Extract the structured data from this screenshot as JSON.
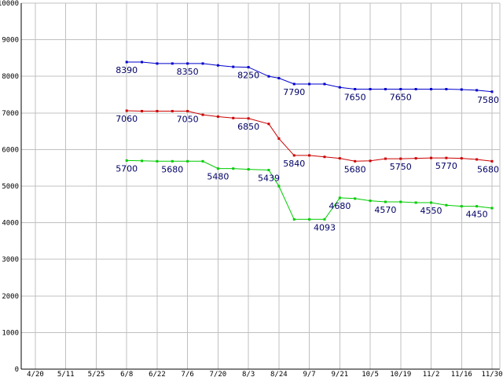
{
  "chart_data": {
    "type": "line",
    "title": "",
    "xlabel": "",
    "ylabel": "",
    "ylim": [
      0,
      10000
    ],
    "y_ticks": [
      0,
      1000,
      2000,
      3000,
      4000,
      5000,
      6000,
      7000,
      8000,
      9000,
      10000
    ],
    "x_ticks": [
      "4/20",
      "5/11",
      "5/25",
      "6/8",
      "6/22",
      "7/6",
      "7/20",
      "8/3",
      "8/24",
      "9/7",
      "9/21",
      "10/5",
      "10/19",
      "11/2",
      "11/16",
      "11/30"
    ],
    "grid": true,
    "legend": "none",
    "colors": {
      "axis": "#000000",
      "grid": "#c0c0c0",
      "labels": "#000066"
    },
    "series": [
      {
        "color": "#0000cc",
        "values": [
          {
            "x": "6/8",
            "y": 8390
          },
          {
            "x": "6/15",
            "y": 8390
          },
          {
            "x": "6/22",
            "y": 8350
          },
          {
            "x": "6/29",
            "y": 8350
          },
          {
            "x": "7/6",
            "y": 8350
          },
          {
            "x": "7/13",
            "y": 8350
          },
          {
            "x": "7/20",
            "y": 8300
          },
          {
            "x": "7/27",
            "y": 8260
          },
          {
            "x": "8/3",
            "y": 8250
          },
          {
            "x": "8/17",
            "y": 8000
          },
          {
            "x": "8/24",
            "y": 7950
          },
          {
            "x": "8/31",
            "y": 7790
          },
          {
            "x": "9/7",
            "y": 7790
          },
          {
            "x": "9/14",
            "y": 7790
          },
          {
            "x": "9/21",
            "y": 7700
          },
          {
            "x": "9/28",
            "y": 7650
          },
          {
            "x": "10/5",
            "y": 7650
          },
          {
            "x": "10/12",
            "y": 7650
          },
          {
            "x": "10/19",
            "y": 7650
          },
          {
            "x": "10/26",
            "y": 7650
          },
          {
            "x": "11/2",
            "y": 7650
          },
          {
            "x": "11/9",
            "y": 7650
          },
          {
            "x": "11/16",
            "y": 7640
          },
          {
            "x": "11/23",
            "y": 7620
          },
          {
            "x": "11/30",
            "y": 7580
          }
        ],
        "labels": [
          {
            "x": "6/8",
            "text": "8390",
            "pos": "below"
          },
          {
            "x": "7/6",
            "text": "8350",
            "pos": "below"
          },
          {
            "x": "8/3",
            "text": "8250",
            "pos": "below"
          },
          {
            "x": "8/31",
            "text": "7790",
            "pos": "below"
          },
          {
            "x": "9/28",
            "text": "7650",
            "pos": "below"
          },
          {
            "x": "10/19",
            "text": "7650",
            "pos": "below"
          },
          {
            "x": "11/30",
            "text": "7580",
            "pos": "below"
          }
        ]
      },
      {
        "color": "#cc0000",
        "values": [
          {
            "x": "6/8",
            "y": 7060
          },
          {
            "x": "6/15",
            "y": 7050
          },
          {
            "x": "6/22",
            "y": 7050
          },
          {
            "x": "6/29",
            "y": 7050
          },
          {
            "x": "7/6",
            "y": 7050
          },
          {
            "x": "7/13",
            "y": 6950
          },
          {
            "x": "7/20",
            "y": 6900
          },
          {
            "x": "7/27",
            "y": 6860
          },
          {
            "x": "8/3",
            "y": 6850
          },
          {
            "x": "8/17",
            "y": 6700
          },
          {
            "x": "8/24",
            "y": 6300
          },
          {
            "x": "8/31",
            "y": 5840
          },
          {
            "x": "9/7",
            "y": 5840
          },
          {
            "x": "9/14",
            "y": 5800
          },
          {
            "x": "9/21",
            "y": 5760
          },
          {
            "x": "9/28",
            "y": 5680
          },
          {
            "x": "10/5",
            "y": 5690
          },
          {
            "x": "10/12",
            "y": 5750
          },
          {
            "x": "10/19",
            "y": 5750
          },
          {
            "x": "10/26",
            "y": 5760
          },
          {
            "x": "11/2",
            "y": 5770
          },
          {
            "x": "11/9",
            "y": 5770
          },
          {
            "x": "11/16",
            "y": 5760
          },
          {
            "x": "11/23",
            "y": 5730
          },
          {
            "x": "11/30",
            "y": 5680
          }
        ],
        "labels": [
          {
            "x": "6/8",
            "text": "7060",
            "pos": "below"
          },
          {
            "x": "7/6",
            "text": "7050",
            "pos": "below"
          },
          {
            "x": "8/3",
            "text": "6850",
            "pos": "below"
          },
          {
            "x": "8/31",
            "text": "5840",
            "pos": "below"
          },
          {
            "x": "9/28",
            "text": "5680",
            "pos": "below"
          },
          {
            "x": "10/19",
            "text": "5750",
            "pos": "below"
          },
          {
            "x": "11/9",
            "text": "5770",
            "pos": "below"
          },
          {
            "x": "11/30",
            "text": "5680",
            "pos": "below"
          }
        ]
      },
      {
        "color": "#00cc00",
        "values": [
          {
            "x": "6/8",
            "y": 5700
          },
          {
            "x": "6/15",
            "y": 5690
          },
          {
            "x": "6/22",
            "y": 5680
          },
          {
            "x": "6/29",
            "y": 5680
          },
          {
            "x": "7/6",
            "y": 5680
          },
          {
            "x": "7/13",
            "y": 5680
          },
          {
            "x": "7/20",
            "y": 5480
          },
          {
            "x": "7/27",
            "y": 5480
          },
          {
            "x": "8/3",
            "y": 5460
          },
          {
            "x": "8/17",
            "y": 5439
          },
          {
            "x": "8/24",
            "y": 5000
          },
          {
            "x": "8/31",
            "y": 4093
          },
          {
            "x": "9/7",
            "y": 4093
          },
          {
            "x": "9/14",
            "y": 4093
          },
          {
            "x": "9/21",
            "y": 4680
          },
          {
            "x": "9/28",
            "y": 4660
          },
          {
            "x": "10/5",
            "y": 4600
          },
          {
            "x": "10/12",
            "y": 4570
          },
          {
            "x": "10/19",
            "y": 4570
          },
          {
            "x": "10/26",
            "y": 4550
          },
          {
            "x": "11/2",
            "y": 4550
          },
          {
            "x": "11/9",
            "y": 4480
          },
          {
            "x": "11/16",
            "y": 4450
          },
          {
            "x": "11/23",
            "y": 4450
          },
          {
            "x": "11/30",
            "y": 4400
          }
        ],
        "labels": [
          {
            "x": "6/8",
            "text": "5700",
            "pos": "below"
          },
          {
            "x": "6/29",
            "text": "5680",
            "pos": "below"
          },
          {
            "x": "7/20",
            "text": "5480",
            "pos": "below"
          },
          {
            "x": "8/17",
            "text": "5439",
            "pos": "below"
          },
          {
            "x": "9/14",
            "text": "4093",
            "pos": "below"
          },
          {
            "x": "9/21",
            "text": "4680",
            "pos": "below"
          },
          {
            "x": "10/12",
            "text": "4570",
            "pos": "below"
          },
          {
            "x": "11/2",
            "text": "4550",
            "pos": "below"
          },
          {
            "x": "11/23",
            "text": "4450",
            "pos": "below"
          }
        ]
      }
    ]
  }
}
